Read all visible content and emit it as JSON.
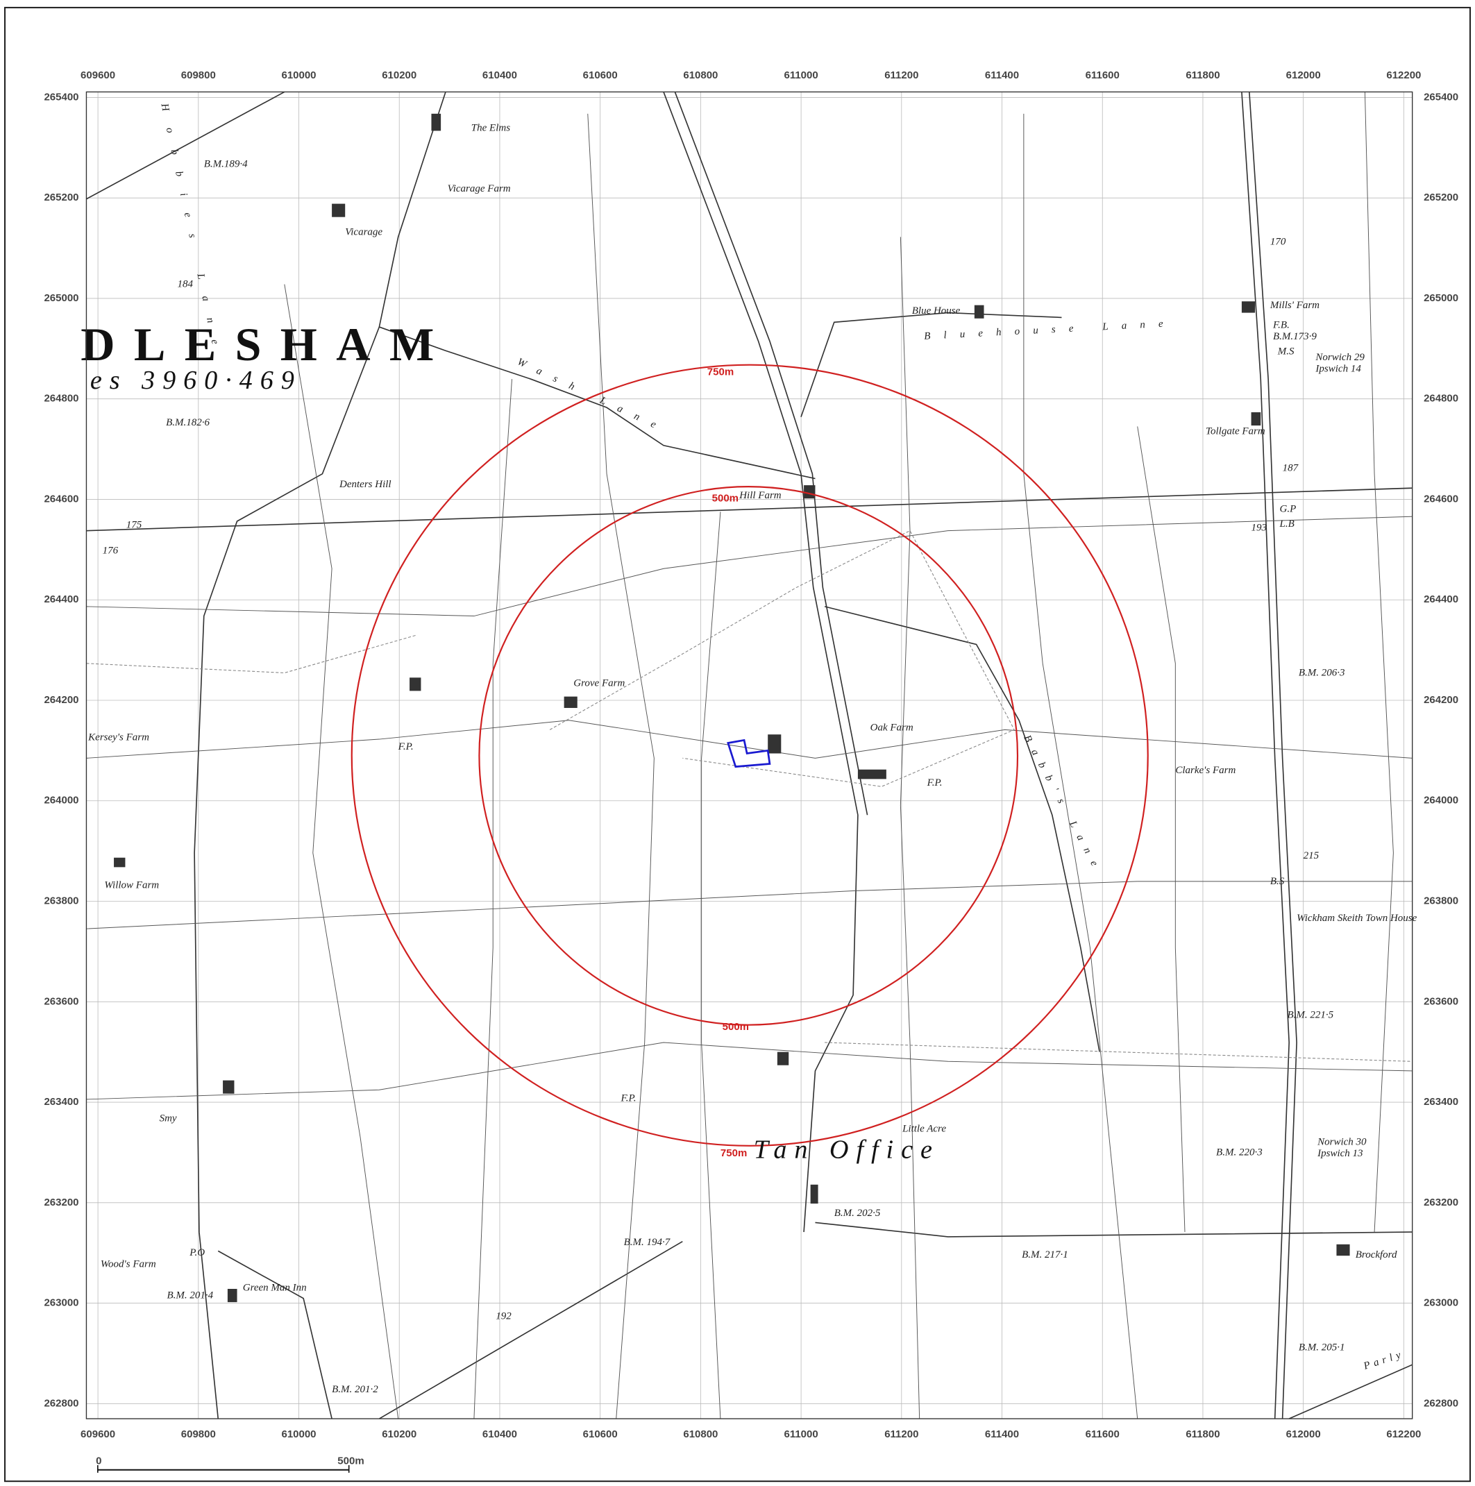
{
  "map": {
    "xlim": [
      609577,
      612217
    ],
    "ylim": [
      262770,
      265411
    ],
    "xticks": [
      609600,
      609800,
      610000,
      610200,
      610400,
      610600,
      610800,
      611000,
      611200,
      611400,
      611600,
      611800,
      612000,
      612200
    ],
    "yticks": [
      262800,
      263000,
      263200,
      263400,
      263600,
      263800,
      264000,
      264200,
      264400,
      264600,
      264800,
      265000,
      265200,
      265400
    ],
    "grid": true,
    "rings": [
      "500m",
      "750m"
    ],
    "scalebar": [
      "0",
      "500m"
    ],
    "labels": [
      "The Elms",
      "Vicarage Farm",
      "Vicarage",
      "B.M.189·4",
      "Hobbies Lane",
      "DLESHAM",
      "es 3960·469",
      "Wash Lane",
      "Denters Hill",
      "B.M.182·6",
      "Hill Farm",
      "Blue House",
      "Bluehouse Lane",
      "Mills' Farm",
      "F.B.",
      "B.M.173·9",
      "M.S",
      "Norwich 29",
      "Ipswich 14",
      "Tollgate Farm",
      "170",
      "187",
      "193",
      "G.P",
      "L.B",
      "Grove Farm",
      "Oak Farm",
      "Kersey's Farm",
      "F.P.",
      "Clarke's Farm",
      "Babb's Lane",
      "Willow Farm",
      "Wickham Skeith Town House",
      "B.M. 206·3",
      "215",
      "B.S",
      "B.M. 221·5",
      "Little Acre",
      "Tan Office",
      "B.M. 202·5",
      "B.M. 194·7",
      "B.M. 217·1",
      "B.M. 220·3",
      "Norwich 30",
      "Ipswich 13",
      "Brockford",
      "Wood's Farm",
      "P.O",
      "Green Man Inn",
      "B.M. 201·4",
      "B.M. 201·2",
      "192",
      "B.M. 205·1",
      "Parly",
      "Smy",
      "184",
      "175",
      "176"
    ]
  }
}
